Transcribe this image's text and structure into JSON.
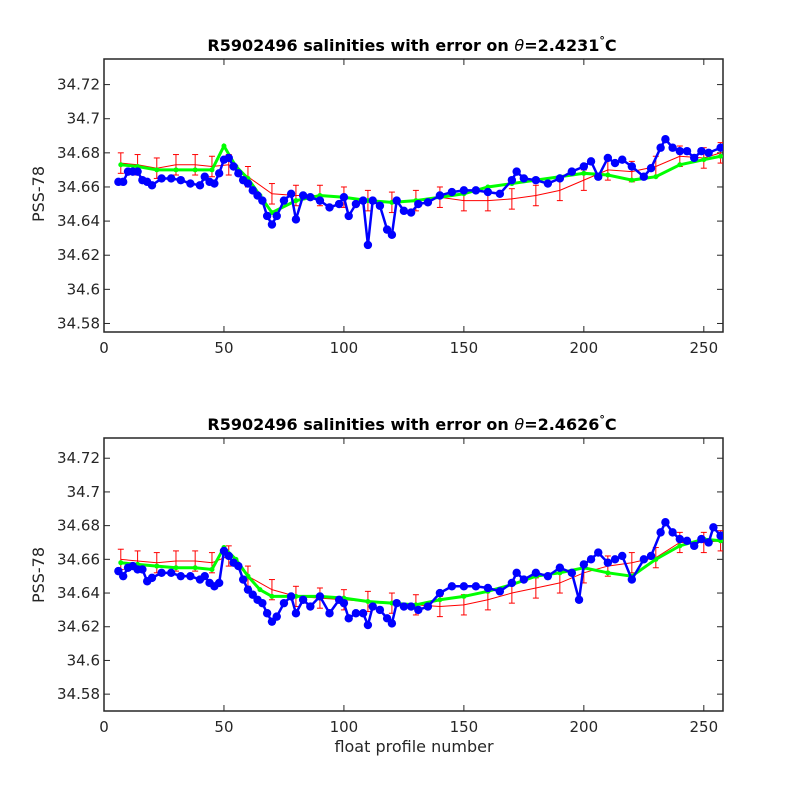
{
  "chart_data": [
    {
      "type": "line",
      "title_prefix": "R5902496 salinities with error on ",
      "title_theta": "θ",
      "title_value": "=2.4231",
      "title_unit": "C",
      "ylabel": "PSS-78",
      "xlabel": "",
      "xlim": [
        0,
        258
      ],
      "ylim": [
        34.575,
        34.735
      ],
      "xticks": [
        0,
        50,
        100,
        150,
        200,
        250
      ],
      "yticks": [
        34.58,
        34.6,
        34.62,
        34.64,
        34.66,
        34.68,
        34.7,
        34.72
      ],
      "yticklabels": [
        "34.58",
        "34.6",
        "34.62",
        "34.64",
        "34.66",
        "34.68",
        "34.7",
        "34.72"
      ],
      "grid": false,
      "series": [
        {
          "role": "mapped salinity with error bars",
          "color": "#ff0000",
          "x": [
            7,
            14,
            22,
            30,
            38,
            45,
            52,
            60,
            70,
            80,
            90,
            100,
            110,
            120,
            130,
            140,
            150,
            160,
            170,
            180,
            190,
            200,
            210,
            220,
            230,
            240,
            250,
            257
          ],
          "y": [
            34.674,
            34.673,
            34.671,
            34.673,
            34.673,
            34.672,
            34.673,
            34.666,
            34.656,
            34.655,
            34.655,
            34.654,
            34.652,
            34.651,
            34.652,
            34.654,
            34.652,
            34.652,
            34.653,
            34.655,
            34.658,
            34.664,
            34.67,
            34.669,
            34.672,
            34.678,
            34.677,
            34.68
          ],
          "error": 0.006
        },
        {
          "role": "mapped salinity",
          "color": "#00ff00",
          "x": [
            7,
            14,
            22,
            30,
            38,
            45,
            50,
            55,
            60,
            65,
            70,
            80,
            90,
            100,
            110,
            120,
            130,
            140,
            150,
            160,
            170,
            180,
            190,
            200,
            210,
            220,
            230,
            240,
            250,
            257
          ],
          "y": [
            34.673,
            34.672,
            34.67,
            34.67,
            34.67,
            34.67,
            34.684,
            34.672,
            34.665,
            34.655,
            34.645,
            34.652,
            34.655,
            34.654,
            34.652,
            34.651,
            34.652,
            34.654,
            34.656,
            34.66,
            34.662,
            34.664,
            34.666,
            34.668,
            34.667,
            34.664,
            34.666,
            34.673,
            34.676,
            34.678
          ]
        },
        {
          "role": "float salinity",
          "color": "#0000ff",
          "x": [
            6,
            8,
            10,
            12,
            14,
            16,
            18,
            20,
            24,
            28,
            32,
            36,
            40,
            42,
            44,
            46,
            48,
            50,
            52,
            54,
            56,
            58,
            60,
            62,
            64,
            66,
            68,
            70,
            72,
            75,
            78,
            80,
            83,
            86,
            90,
            94,
            98,
            100,
            102,
            105,
            108,
            110,
            112,
            115,
            118,
            120,
            122,
            125,
            128,
            131,
            135,
            140,
            145,
            150,
            155,
            160,
            165,
            170,
            172,
            175,
            180,
            185,
            190,
            195,
            200,
            203,
            206,
            210,
            213,
            216,
            220,
            225,
            228,
            232,
            234,
            237,
            240,
            243,
            246,
            249,
            252,
            257
          ],
          "y": [
            34.663,
            34.663,
            34.669,
            34.669,
            34.669,
            34.664,
            34.663,
            34.661,
            34.665,
            34.665,
            34.664,
            34.662,
            34.661,
            34.666,
            34.663,
            34.662,
            34.668,
            34.676,
            34.677,
            34.672,
            34.668,
            34.664,
            34.662,
            34.658,
            34.655,
            34.652,
            34.643,
            34.638,
            34.643,
            34.652,
            34.656,
            34.641,
            34.655,
            34.654,
            34.652,
            34.648,
            34.65,
            34.654,
            34.643,
            34.65,
            34.652,
            34.626,
            34.652,
            34.649,
            34.635,
            34.632,
            34.652,
            34.646,
            34.645,
            34.65,
            34.651,
            34.655,
            34.657,
            34.658,
            34.658,
            34.657,
            34.656,
            34.664,
            34.669,
            34.665,
            34.664,
            34.662,
            34.665,
            34.669,
            34.672,
            34.675,
            34.666,
            34.677,
            34.674,
            34.676,
            34.672,
            34.666,
            34.671,
            34.683,
            34.688,
            34.683,
            34.681,
            34.681,
            34.677,
            34.681,
            34.68,
            34.683
          ]
        }
      ]
    },
    {
      "type": "line",
      "title_prefix": "R5902496 salinities with error on ",
      "title_theta": "θ",
      "title_value": "=2.4626",
      "title_unit": "C",
      "ylabel": "PSS-78",
      "xlabel": "float profile number",
      "xlim": [
        0,
        258
      ],
      "ylim": [
        34.57,
        34.732
      ],
      "xticks": [
        0,
        50,
        100,
        150,
        200,
        250
      ],
      "yticks": [
        34.58,
        34.6,
        34.62,
        34.64,
        34.66,
        34.68,
        34.7,
        34.72
      ],
      "yticklabels": [
        "34.58",
        "34.6",
        "34.62",
        "34.64",
        "34.66",
        "34.68",
        "34.7",
        "34.72"
      ],
      "grid": false,
      "series": [
        {
          "role": "mapped salinity with error bars",
          "color": "#ff0000",
          "x": [
            7,
            14,
            22,
            30,
            38,
            45,
            52,
            60,
            70,
            80,
            90,
            100,
            110,
            120,
            130,
            140,
            150,
            160,
            170,
            180,
            190,
            200,
            210,
            220,
            230,
            240,
            250,
            257
          ],
          "y": [
            34.66,
            34.659,
            34.658,
            34.659,
            34.659,
            34.658,
            34.662,
            34.65,
            34.642,
            34.638,
            34.637,
            34.636,
            34.635,
            34.634,
            34.633,
            34.632,
            34.633,
            34.636,
            34.64,
            34.643,
            34.646,
            34.652,
            34.656,
            34.658,
            34.661,
            34.67,
            34.67,
            34.671
          ],
          "error": 0.006
        },
        {
          "role": "mapped salinity",
          "color": "#00ff00",
          "x": [
            7,
            14,
            22,
            30,
            38,
            45,
            50,
            55,
            60,
            65,
            70,
            80,
            90,
            100,
            110,
            120,
            130,
            140,
            150,
            160,
            170,
            180,
            190,
            200,
            210,
            220,
            230,
            240,
            250,
            257
          ],
          "y": [
            34.658,
            34.657,
            34.656,
            34.655,
            34.655,
            34.654,
            34.667,
            34.66,
            34.65,
            34.642,
            34.638,
            34.638,
            34.638,
            34.637,
            34.635,
            34.634,
            34.633,
            34.636,
            34.638,
            34.641,
            34.645,
            34.65,
            34.652,
            34.655,
            34.652,
            34.65,
            34.66,
            34.668,
            34.672,
            34.671
          ]
        },
        {
          "role": "float salinity",
          "color": "#0000ff",
          "x": [
            6,
            8,
            10,
            12,
            14,
            16,
            18,
            20,
            24,
            28,
            32,
            36,
            40,
            42,
            44,
            46,
            48,
            50,
            52,
            54,
            56,
            58,
            60,
            62,
            64,
            66,
            68,
            70,
            72,
            75,
            78,
            80,
            83,
            86,
            90,
            94,
            98,
            100,
            102,
            105,
            108,
            110,
            112,
            115,
            118,
            120,
            122,
            125,
            128,
            131,
            135,
            140,
            145,
            150,
            155,
            160,
            165,
            170,
            172,
            175,
            180,
            185,
            190,
            195,
            198,
            200,
            203,
            206,
            210,
            213,
            216,
            220,
            225,
            228,
            232,
            234,
            237,
            240,
            243,
            246,
            249,
            252,
            254,
            257
          ],
          "y": [
            34.653,
            34.65,
            34.655,
            34.656,
            34.654,
            34.654,
            34.647,
            34.649,
            34.652,
            34.652,
            34.65,
            34.65,
            34.648,
            34.65,
            34.646,
            34.644,
            34.646,
            34.665,
            34.662,
            34.658,
            34.656,
            34.648,
            34.642,
            34.639,
            34.636,
            34.634,
            34.628,
            34.623,
            34.626,
            34.634,
            34.638,
            34.628,
            34.636,
            34.632,
            34.638,
            34.628,
            34.636,
            34.634,
            34.625,
            34.628,
            34.628,
            34.621,
            34.632,
            34.63,
            34.625,
            34.622,
            34.634,
            34.632,
            34.632,
            34.63,
            34.632,
            34.64,
            34.644,
            34.644,
            34.644,
            34.643,
            34.641,
            34.646,
            34.652,
            34.648,
            34.652,
            34.65,
            34.655,
            34.652,
            34.636,
            34.657,
            34.66,
            34.664,
            34.658,
            34.66,
            34.662,
            34.648,
            34.66,
            34.662,
            34.676,
            34.682,
            34.676,
            34.672,
            34.671,
            34.668,
            34.672,
            34.67,
            34.679,
            34.674
          ]
        }
      ]
    }
  ]
}
